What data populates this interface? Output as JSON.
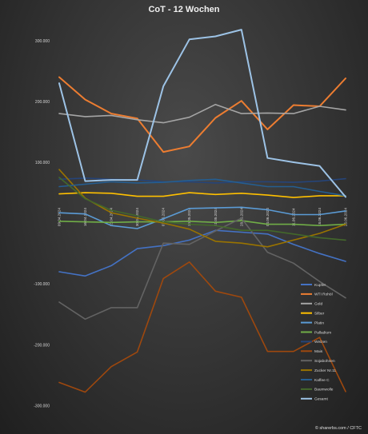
{
  "credit": "© sharerbs.com / CFTC",
  "chart_data": {
    "type": "line",
    "title": "CoT - 12 Wochen",
    "x": [
      "09.04.2024",
      "16.04.2024",
      "23.04.2024",
      "30.04.2024",
      "07.05.2024",
      "14.05.2024",
      "21.05.2024",
      "28.05.2024",
      "04.06.2024",
      "11.06.2024",
      "18.06.2024",
      "25.06.2024"
    ],
    "ylim": [
      -310000,
      330000
    ],
    "yticks": [
      300000,
      200000,
      100000,
      -100000,
      -200000,
      -300000
    ],
    "ytick_labels": [
      "300.000",
      "200.000",
      "100.000",
      "-100.000",
      "-200.000",
      "-300.000"
    ],
    "grid": false,
    "legend_position": "right",
    "series": [
      {
        "name": "Kupfer",
        "color": "#4472c4",
        "values": [
          -80000,
          -87000,
          -70000,
          -42000,
          -37000,
          -28000,
          -12000,
          -15000,
          -18000,
          -35000,
          -50000,
          -63000
        ]
      },
      {
        "name": "WTI Rohöl",
        "color": "#ed7d31",
        "values": [
          240000,
          203000,
          180000,
          172000,
          117000,
          126000,
          173000,
          201000,
          154000,
          194000,
          192000,
          238000
        ]
      },
      {
        "name": "Gold",
        "color": "#a5a5a5",
        "values": [
          180000,
          175000,
          177000,
          170000,
          165000,
          174000,
          195000,
          180000,
          181000,
          180000,
          192000,
          186000
        ]
      },
      {
        "name": "Silber",
        "color": "#ffc000",
        "values": [
          48000,
          50000,
          49000,
          44000,
          44000,
          50000,
          47000,
          49000,
          46000,
          42000,
          45000,
          45000
        ]
      },
      {
        "name": "Platin",
        "color": "#5b9bd5",
        "values": [
          17000,
          15000,
          -4000,
          -9000,
          7000,
          24000,
          25000,
          26000,
          22000,
          14000,
          14000,
          20000
        ]
      },
      {
        "name": "Palladium",
        "color": "#70ad47",
        "values": [
          3000,
          2000,
          1000,
          2000,
          2000,
          3000,
          1000,
          4000,
          -2000,
          -2000,
          -4000,
          -2000
        ]
      },
      {
        "name": "Weizen",
        "color": "#264478",
        "values": [
          72000,
          74000,
          72000,
          71000,
          68000,
          68000,
          66000,
          68000,
          68000,
          67000,
          69000,
          73000
        ]
      },
      {
        "name": "Mais",
        "color": "#9e480e",
        "values": [
          -262000,
          -278000,
          -236000,
          -212000,
          -91000,
          -64000,
          -112000,
          -122000,
          -211000,
          -211000,
          -188000,
          -277000
        ]
      },
      {
        "name": "Sojabohnen",
        "color": "#636363",
        "values": [
          -130000,
          -158000,
          -139000,
          -139000,
          -33000,
          -35000,
          -13000,
          8000,
          -48000,
          -66000,
          -96000,
          -123000
        ]
      },
      {
        "name": "Zucker Nr.11",
        "color": "#997300",
        "values": [
          88000,
          41000,
          17000,
          8000,
          0,
          -10000,
          -30000,
          -33000,
          -39000,
          -28000,
          -17000,
          -2000
        ]
      },
      {
        "name": "Kaffee C",
        "color": "#255e91",
        "values": [
          60000,
          64000,
          68000,
          66000,
          67000,
          70000,
          72000,
          66000,
          60000,
          60000,
          52000,
          45000
        ]
      },
      {
        "name": "Baumwolle",
        "color": "#43682b",
        "values": [
          75000,
          40000,
          21000,
          12000,
          2000,
          -2000,
          -4000,
          -12000,
          -12000,
          -18000,
          -24000,
          -28000
        ]
      },
      {
        "name": "Gesamt",
        "color": "#9dc3e6",
        "values": [
          230000,
          69000,
          71000,
          71000,
          225000,
          302000,
          307000,
          318000,
          107000,
          100000,
          94000,
          43000
        ]
      }
    ]
  }
}
